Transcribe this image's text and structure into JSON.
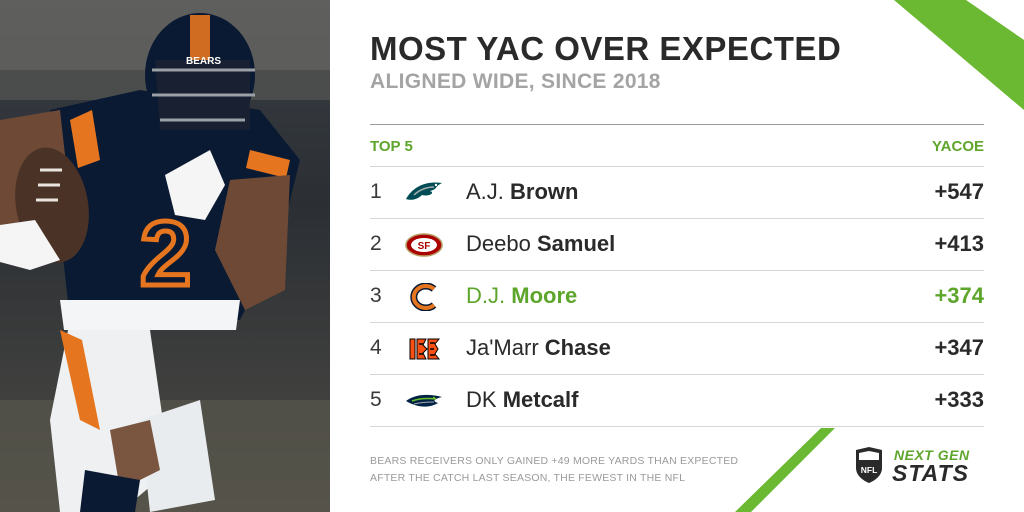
{
  "title": "MOST YAC OVER EXPECTED",
  "subtitle": "ALIGNED WIDE, SINCE 2018",
  "header": {
    "left": "TOP 5",
    "right": "YACOE"
  },
  "rows": [
    {
      "rank": "1",
      "first": "A.J.",
      "last": "Brown",
      "value": "+547",
      "team_icon": "eagles-logo-icon",
      "highlight": false
    },
    {
      "rank": "2",
      "first": "Deebo",
      "last": "Samuel",
      "value": "+413",
      "team_icon": "49ers-logo-icon",
      "highlight": false
    },
    {
      "rank": "3",
      "first": "D.J.",
      "last": "Moore",
      "value": "+374",
      "team_icon": "bears-logo-icon",
      "highlight": true
    },
    {
      "rank": "4",
      "first": "Ja'Marr",
      "last": "Chase",
      "value": "+347",
      "team_icon": "bengals-logo-icon",
      "highlight": false
    },
    {
      "rank": "5",
      "first": "DK",
      "last": "Metcalf",
      "value": "+333",
      "team_icon": "seahawks-logo-icon",
      "highlight": false
    }
  ],
  "footnote": {
    "line1": "BEARS RECEIVERS ONLY GAINED +49 MORE YARDS THAN EXPECTED",
    "line2": "AFTER THE CATCH LAST SEASON, THE FEWEST IN THE NFL"
  },
  "brand": {
    "shield": "NFL",
    "line1": "NEXT GEN",
    "line2": "STATS"
  },
  "photo": {
    "jersey_number": "2",
    "helmet_text": "BEARS"
  },
  "colors": {
    "accent": "#5ea52c",
    "text": "#2a2a2a",
    "muted": "#a4a4a4",
    "bears_navy": "#0b1a33",
    "bears_orange": "#e5761f"
  }
}
